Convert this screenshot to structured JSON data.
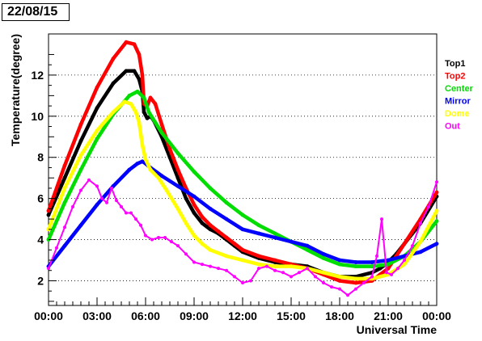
{
  "date_label": "22/08/15",
  "chart_data": {
    "type": "scatter",
    "xlabel": "Universal Time",
    "ylabel": "Temperature(degree)",
    "xlim": [
      0,
      24
    ],
    "ylim": [
      0.8,
      14
    ],
    "x_ticks": [
      {
        "value": 0,
        "label": "00:00"
      },
      {
        "value": 3,
        "label": "03:00"
      },
      {
        "value": 6,
        "label": "06:00"
      },
      {
        "value": 9,
        "label": "09:00"
      },
      {
        "value": 12,
        "label": "12:00"
      },
      {
        "value": 15,
        "label": "15:00"
      },
      {
        "value": 18,
        "label": "18:00"
      },
      {
        "value": 21,
        "label": "21:00"
      },
      {
        "value": 24,
        "label": "00:00"
      }
    ],
    "y_ticks": [
      {
        "value": 2,
        "label": "2"
      },
      {
        "value": 4,
        "label": "4"
      },
      {
        "value": 6,
        "label": "6"
      },
      {
        "value": 8,
        "label": "8"
      },
      {
        "value": 10,
        "label": "10"
      },
      {
        "value": 12,
        "label": "12"
      }
    ],
    "grid": "horizontal dotted",
    "legend_position": "right",
    "series": [
      {
        "name": "Top1",
        "color": "#000000",
        "x": [
          0,
          1,
          2,
          3,
          4,
          4.8,
          5.3,
          5.6,
          5.8,
          5.9,
          6.1,
          6.3,
          6.5,
          7,
          7.5,
          8,
          8.5,
          9,
          9.5,
          10,
          10.5,
          11,
          11.5,
          12,
          13,
          14,
          15,
          16,
          17,
          18,
          19,
          20,
          20.5,
          21,
          21.5,
          22,
          23,
          24
        ],
        "y": [
          5.2,
          7,
          8.8,
          10.4,
          11.6,
          12.2,
          12.2,
          11.8,
          11.2,
          10.2,
          9.9,
          10,
          9.8,
          9,
          8,
          7,
          6,
          5.3,
          4.8,
          4.5,
          4.3,
          4,
          3.7,
          3.4,
          3.1,
          2.9,
          2.8,
          2.7,
          2.4,
          2.2,
          2.2,
          2.4,
          2.6,
          2.9,
          3.3,
          3.8,
          4.8,
          6.1
        ]
      },
      {
        "name": "Top2",
        "color": "#ff0000",
        "x": [
          0,
          1,
          2,
          3,
          4,
          4.8,
          5.3,
          5.6,
          5.8,
          5.9,
          6.1,
          6.3,
          6.6,
          7,
          7.5,
          8,
          8.5,
          9,
          9.5,
          10,
          10.5,
          11,
          11.5,
          12,
          13,
          14,
          15,
          16,
          17,
          18,
          19,
          20,
          20.5,
          21,
          21.5,
          22,
          23,
          24
        ],
        "y": [
          5.4,
          7.6,
          9.6,
          11.4,
          12.8,
          13.6,
          13.5,
          13,
          12,
          10.6,
          10.5,
          10.9,
          10.6,
          9.6,
          8.4,
          7.4,
          6.5,
          5.7,
          5.1,
          4.7,
          4.4,
          4.1,
          3.8,
          3.5,
          3.2,
          3,
          2.8,
          2.6,
          2.3,
          2,
          1.9,
          2,
          2.3,
          2.6,
          3.2,
          3.8,
          5,
          6.3
        ]
      },
      {
        "name": "Center",
        "color": "#00dd00",
        "x": [
          0,
          1,
          2,
          3,
          4,
          5,
          5.5,
          5.9,
          6.2,
          6.6,
          7,
          8,
          9,
          10,
          11,
          12,
          13,
          14,
          15,
          16,
          17,
          18,
          19,
          20,
          21,
          22,
          23,
          24
        ],
        "y": [
          4,
          5.8,
          7.4,
          8.9,
          10.1,
          11,
          11.2,
          10.9,
          10.2,
          9.7,
          9.2,
          8.2,
          7.3,
          6.5,
          5.8,
          5.2,
          4.7,
          4.3,
          3.9,
          3.5,
          3.1,
          2.8,
          2.7,
          2.7,
          2.8,
          3.2,
          3.9,
          4.9
        ]
      },
      {
        "name": "Mirror",
        "color": "#0000ff",
        "x": [
          0,
          1,
          2,
          3,
          4,
          5,
          5.5,
          5.8,
          6,
          6.3,
          7,
          8,
          9,
          10,
          11,
          12,
          13,
          14,
          15,
          16,
          17,
          18,
          19,
          20,
          21,
          22,
          23,
          24
        ],
        "y": [
          2.7,
          3.7,
          4.7,
          5.7,
          6.6,
          7.4,
          7.7,
          7.8,
          7.7,
          7.5,
          7.1,
          6.6,
          6.1,
          5.5,
          5,
          4.5,
          4.3,
          4.1,
          3.9,
          3.7,
          3.3,
          3,
          2.9,
          2.9,
          3,
          3.2,
          3.4,
          3.8
        ]
      },
      {
        "name": "Dome",
        "color": "#ffff00",
        "x": [
          0,
          1,
          2,
          3,
          4,
          4.7,
          5.1,
          5.4,
          5.6,
          5.8,
          6,
          6.3,
          6.8,
          7.3,
          8,
          8.5,
          9,
          9.5,
          10,
          11,
          12,
          13,
          14,
          15,
          16,
          17,
          18,
          19,
          20,
          21,
          22,
          23,
          24
        ],
        "y": [
          4.5,
          6.5,
          8.1,
          9.3,
          10.2,
          10.7,
          10.6,
          10.2,
          9.7,
          8.6,
          7.9,
          7.4,
          7,
          6.4,
          5.5,
          4.8,
          4.2,
          3.8,
          3.5,
          3.2,
          3,
          2.8,
          2.7,
          2.7,
          2.6,
          2.4,
          2.2,
          2.1,
          2.1,
          2.3,
          2.8,
          3.9,
          5.4
        ]
      },
      {
        "name": "Out",
        "color": "#ff00ff",
        "x": [
          0,
          0.5,
          1,
          1.5,
          2,
          2.5,
          3,
          3.3,
          3.6,
          3.9,
          4.2,
          4.5,
          4.8,
          5.1,
          5.4,
          5.7,
          6,
          6.4,
          6.8,
          7.2,
          7.6,
          8,
          8.5,
          9,
          9.5,
          10,
          10.5,
          11,
          11.5,
          12,
          12.5,
          13,
          13.5,
          14,
          14.5,
          15,
          15.5,
          16,
          16.5,
          17,
          17.5,
          18,
          18.5,
          19,
          19.5,
          20,
          20.3,
          20.6,
          20.9,
          21.2,
          21.6,
          22,
          22.5,
          23,
          23.5,
          24
        ],
        "y": [
          2.6,
          3.6,
          4.6,
          5.6,
          6.4,
          6.9,
          6.6,
          6,
          5.8,
          6.5,
          5.9,
          5.6,
          5.3,
          5.3,
          5,
          4.7,
          4.2,
          4,
          4.1,
          4.1,
          3.9,
          3.7,
          3.3,
          2.9,
          2.8,
          2.7,
          2.6,
          2.5,
          2.2,
          1.9,
          2,
          2.6,
          2.7,
          2.5,
          2.4,
          2.2,
          2.4,
          2.6,
          2.2,
          1.9,
          1.7,
          1.6,
          1.3,
          1.6,
          1.9,
          2.2,
          3.2,
          5,
          2.4,
          2.3,
          2.6,
          3,
          3.7,
          4.8,
          5.6,
          6.8
        ]
      }
    ]
  }
}
